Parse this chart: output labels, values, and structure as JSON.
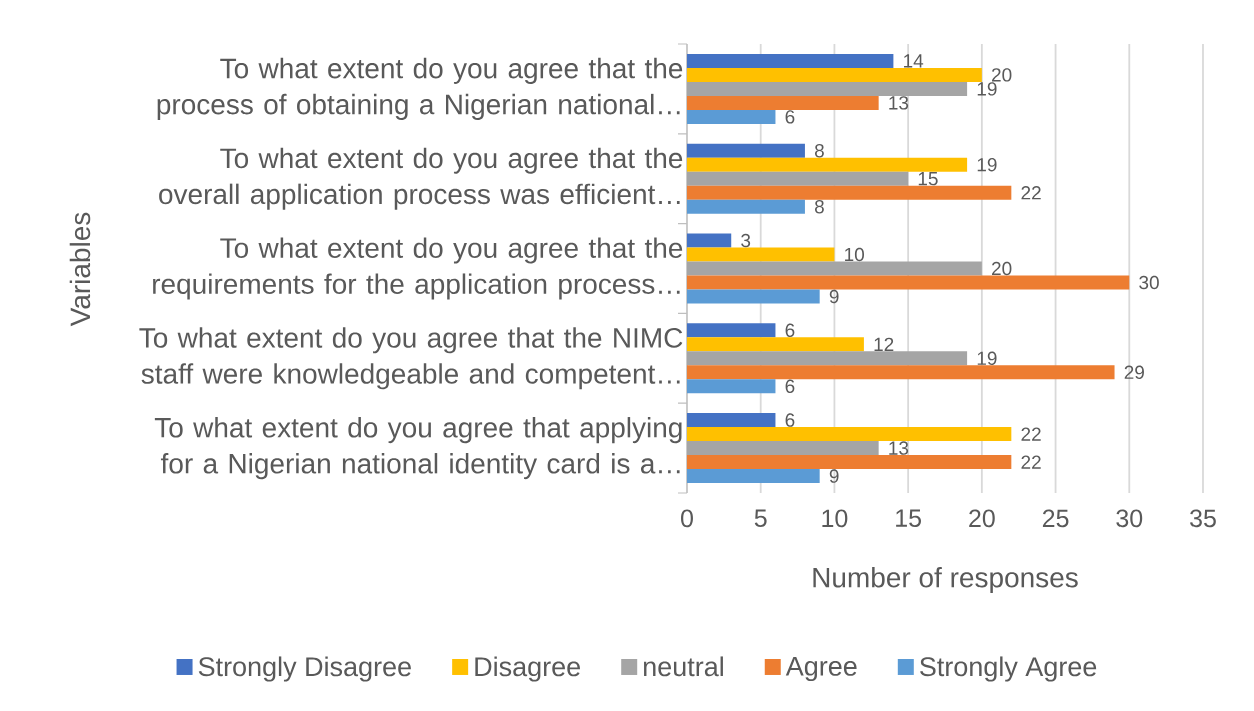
{
  "chart_data": {
    "type": "bar",
    "orientation": "horizontal",
    "xlabel": "Number of responses",
    "ylabel": "Variables",
    "categories": [
      "To what extent do you agree that the process of obtaining a Nigerian national…",
      "To what extent do you agree that the overall application process was efficient…",
      "To what extent do you agree that the requirements for the application process…",
      "To what extent do you agree that the NIMC staff were knowledgeable and competent…",
      "To what extent do you agree that applying for a Nigerian national identity card is a…"
    ],
    "series": [
      {
        "name": "Strongly Disagree",
        "color": "#4472c4",
        "values": [
          14,
          8,
          3,
          6,
          6
        ]
      },
      {
        "name": "Disagree",
        "color": "#ffc000",
        "values": [
          20,
          19,
          10,
          12,
          22
        ]
      },
      {
        "name": "neutral",
        "color": "#a5a5a5",
        "values": [
          19,
          15,
          20,
          19,
          13
        ]
      },
      {
        "name": "Agree",
        "color": "#ed7d31",
        "values": [
          13,
          22,
          30,
          29,
          22
        ]
      },
      {
        "name": "Strongly Agree",
        "color": "#5b9bd5",
        "values": [
          6,
          8,
          9,
          6,
          9
        ]
      }
    ],
    "xlim": [
      0,
      35
    ],
    "xticks": [
      0,
      5,
      10,
      15,
      20,
      25,
      30,
      35
    ],
    "grid": "x",
    "legend": "bottom",
    "data_labels": true
  }
}
